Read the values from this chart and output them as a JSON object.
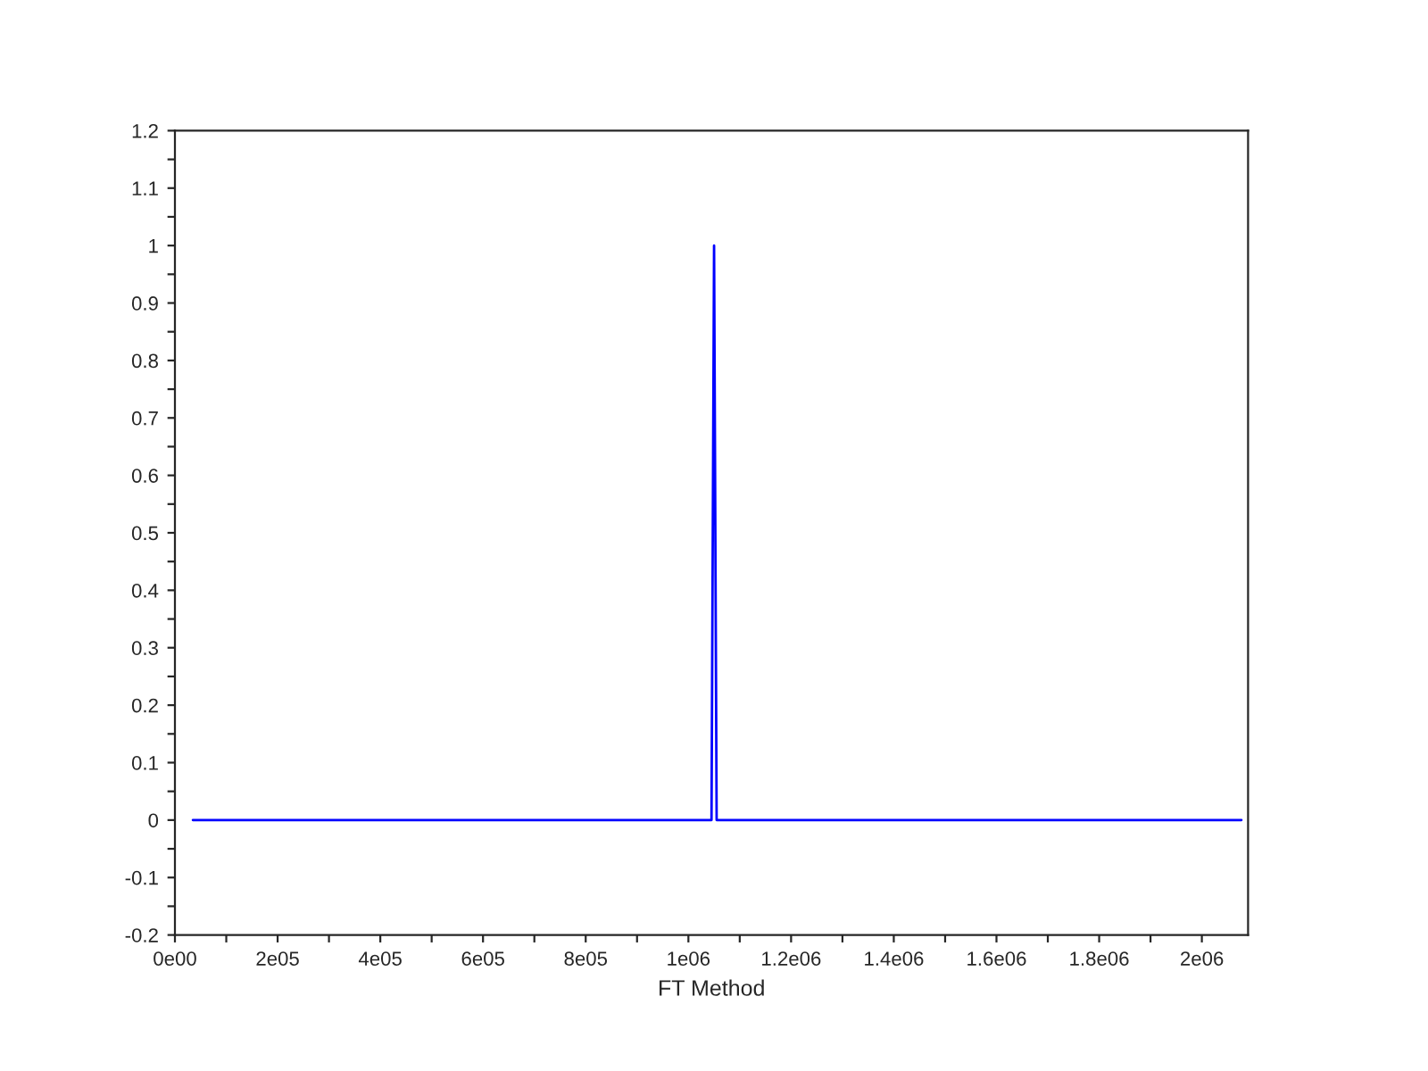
{
  "chart_data": {
    "type": "line",
    "xlabel": "FT Method",
    "series": [
      {
        "color": "#0000ff",
        "x": [
          35000,
          1045000,
          1050000,
          1055000,
          2077000
        ],
        "values": [
          0,
          0,
          1,
          0,
          0
        ]
      }
    ],
    "xlim": [
      0,
      2090000
    ],
    "xticks": [
      {
        "value": 0,
        "label": "0e00"
      },
      {
        "value": 100000,
        "label": null
      },
      {
        "value": 200000,
        "label": "2e05"
      },
      {
        "value": 300000,
        "label": null
      },
      {
        "value": 400000,
        "label": "4e05"
      },
      {
        "value": 500000,
        "label": null
      },
      {
        "value": 600000,
        "label": "6e05"
      },
      {
        "value": 700000,
        "label": null
      },
      {
        "value": 800000,
        "label": "8e05"
      },
      {
        "value": 900000,
        "label": null
      },
      {
        "value": 1000000,
        "label": "1e06"
      },
      {
        "value": 1100000,
        "label": null
      },
      {
        "value": 1200000,
        "label": "1.2e06"
      },
      {
        "value": 1300000,
        "label": null
      },
      {
        "value": 1400000,
        "label": "1.4e06"
      },
      {
        "value": 1500000,
        "label": null
      },
      {
        "value": 1600000,
        "label": "1.6e06"
      },
      {
        "value": 1700000,
        "label": null
      },
      {
        "value": 1800000,
        "label": "1.8e06"
      },
      {
        "value": 1900000,
        "label": null
      },
      {
        "value": 2000000,
        "label": "2e06"
      }
    ],
    "ylim": [
      -0.2,
      1.2
    ],
    "yticks": [
      -0.2,
      {
        "value": -0.15,
        "label": null
      },
      -0.1,
      {
        "value": -0.05,
        "label": null
      },
      0,
      {
        "value": 0.05,
        "label": null
      },
      0.1,
      {
        "value": 0.15,
        "label": null
      },
      0.2,
      {
        "value": 0.25,
        "label": null
      },
      0.3,
      {
        "value": 0.35,
        "label": null
      },
      0.4,
      {
        "value": 0.45,
        "label": null
      },
      0.5,
      {
        "value": 0.55,
        "label": null
      },
      0.6,
      {
        "value": 0.65,
        "label": null
      },
      0.7,
      {
        "value": 0.75,
        "label": null
      },
      0.8,
      {
        "value": 0.85,
        "label": null
      },
      0.9,
      {
        "value": 0.95,
        "label": null
      },
      1,
      {
        "value": 1.05,
        "label": null
      },
      1.1,
      {
        "value": 1.15,
        "label": null
      },
      1.2
    ],
    "grid": false,
    "legend": false,
    "marker": "none",
    "line_style": "solid"
  }
}
